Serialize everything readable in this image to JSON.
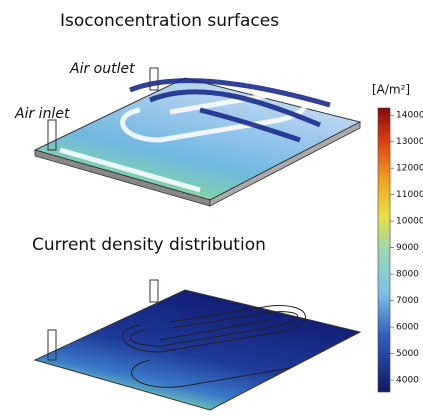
{
  "panels": [
    {
      "title": "Isoconcentration surfaces",
      "labels": [
        "Air outlet",
        "Air inlet"
      ]
    },
    {
      "title": "Current density distribution"
    }
  ],
  "colorbar": {
    "unit": "[A/m²]",
    "range": [
      3550,
      14270
    ],
    "ticks": [
      4000,
      5000,
      6000,
      7000,
      8000,
      9000,
      10000,
      11000,
      12000,
      13000,
      14000
    ]
  }
}
